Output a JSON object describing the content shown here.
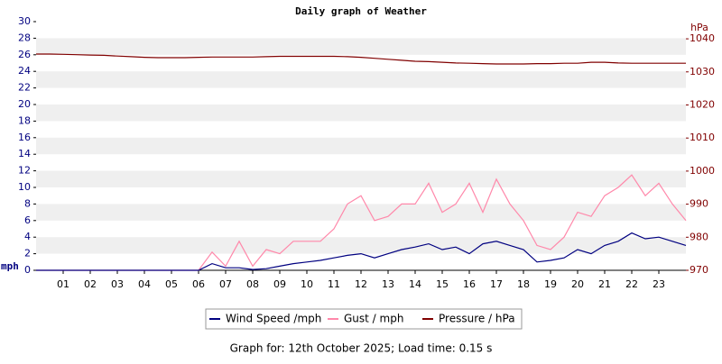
{
  "chart_data": {
    "type": "line",
    "title": "Daily graph of Weather",
    "y_label": "mph",
    "y2_label": "hPa",
    "footer": "Graph for: 12th October 2025; Load time: 0.15 s",
    "grid": "bands",
    "xlim": [
      0,
      24
    ],
    "xticks": [
      {
        "value": 1,
        "label": "01"
      },
      {
        "value": 2,
        "label": "02"
      },
      {
        "value": 3,
        "label": "03"
      },
      {
        "value": 4,
        "label": "04"
      },
      {
        "value": 5,
        "label": "05"
      },
      {
        "value": 6,
        "label": "06"
      },
      {
        "value": 7,
        "label": "07"
      },
      {
        "value": 8,
        "label": "08"
      },
      {
        "value": 9,
        "label": "09"
      },
      {
        "value": 10,
        "label": "10"
      },
      {
        "value": 11,
        "label": "11"
      },
      {
        "value": 12,
        "label": "12"
      },
      {
        "value": 13,
        "label": "13"
      },
      {
        "value": 14,
        "label": "14"
      },
      {
        "value": 15,
        "label": "15"
      },
      {
        "value": 16,
        "label": "16"
      },
      {
        "value": 17,
        "label": "17"
      },
      {
        "value": 18,
        "label": "18"
      },
      {
        "value": 19,
        "label": "19"
      },
      {
        "value": 20,
        "label": "20"
      },
      {
        "value": 21,
        "label": "21"
      },
      {
        "value": 22,
        "label": "22"
      },
      {
        "value": 23,
        "label": "23"
      }
    ],
    "ylim": [
      0,
      30
    ],
    "yticks": [
      0,
      2,
      4,
      6,
      8,
      10,
      12,
      14,
      16,
      18,
      20,
      22,
      24,
      26,
      28,
      30
    ],
    "y2lim": [
      970,
      1045.2
    ],
    "y2ticks": [
      970,
      980,
      990,
      1000,
      1010,
      1020,
      1030,
      1040
    ],
    "x": [
      0,
      0.5,
      1,
      1.5,
      2,
      2.5,
      3,
      3.5,
      4,
      4.5,
      5,
      5.5,
      6,
      6.5,
      7,
      7.5,
      8,
      8.5,
      9,
      9.5,
      10,
      10.5,
      11,
      11.5,
      12,
      12.5,
      13,
      13.5,
      14,
      14.5,
      15,
      15.5,
      16,
      16.5,
      17,
      17.5,
      18,
      18.5,
      19,
      19.5,
      20,
      20.5,
      21,
      21.5,
      22,
      22.5,
      23,
      23.5,
      24
    ],
    "series": [
      {
        "name": "Wind Speed /mph",
        "color": "#000080",
        "values": [
          0,
          0,
          0,
          0,
          0,
          0,
          0,
          0,
          0,
          0,
          0,
          0,
          0,
          0.8,
          0.3,
          0.3,
          0.1,
          0.2,
          0.5,
          0.8,
          1,
          1.2,
          1.5,
          1.8,
          2,
          1.5,
          2,
          2.5,
          2.8,
          3.2,
          2.5,
          2.8,
          2,
          3.2,
          3.5,
          3,
          2.5,
          1,
          1.2,
          1.5,
          2.5,
          2,
          3,
          3.5,
          4.5,
          3.8,
          4,
          3.5,
          3
        ]
      },
      {
        "name": "Gust / mph",
        "color": "#ff88aa",
        "values": [
          0,
          0,
          0,
          0,
          0,
          0,
          0,
          0,
          0,
          0,
          0,
          0,
          0,
          2.2,
          0.5,
          3.5,
          0.5,
          2.5,
          2,
          3.5,
          3.5,
          3.5,
          5,
          8,
          9,
          6,
          6.5,
          8,
          8,
          10.5,
          7,
          8,
          10.5,
          7,
          11,
          8,
          6,
          3,
          2.5,
          4,
          7,
          6.5,
          9,
          10,
          11.5,
          9,
          10.5,
          8,
          6
        ]
      },
      {
        "name": "Pressure / hPa",
        "color": "#800000",
        "axis": "y2",
        "values": [
          1035.4,
          1035.4,
          1035.3,
          1035.2,
          1035.1,
          1035,
          1034.8,
          1034.6,
          1034.4,
          1034.3,
          1034.3,
          1034.3,
          1034.4,
          1034.5,
          1034.5,
          1034.5,
          1034.5,
          1034.6,
          1034.7,
          1034.7,
          1034.7,
          1034.7,
          1034.7,
          1034.6,
          1034.4,
          1034.1,
          1033.8,
          1033.5,
          1033.2,
          1033.1,
          1032.9,
          1032.7,
          1032.6,
          1032.5,
          1032.4,
          1032.4,
          1032.4,
          1032.5,
          1032.5,
          1032.6,
          1032.6,
          1032.9,
          1032.9,
          1032.7,
          1032.6,
          1032.6,
          1032.6,
          1032.6,
          1032.6
        ]
      }
    ]
  }
}
